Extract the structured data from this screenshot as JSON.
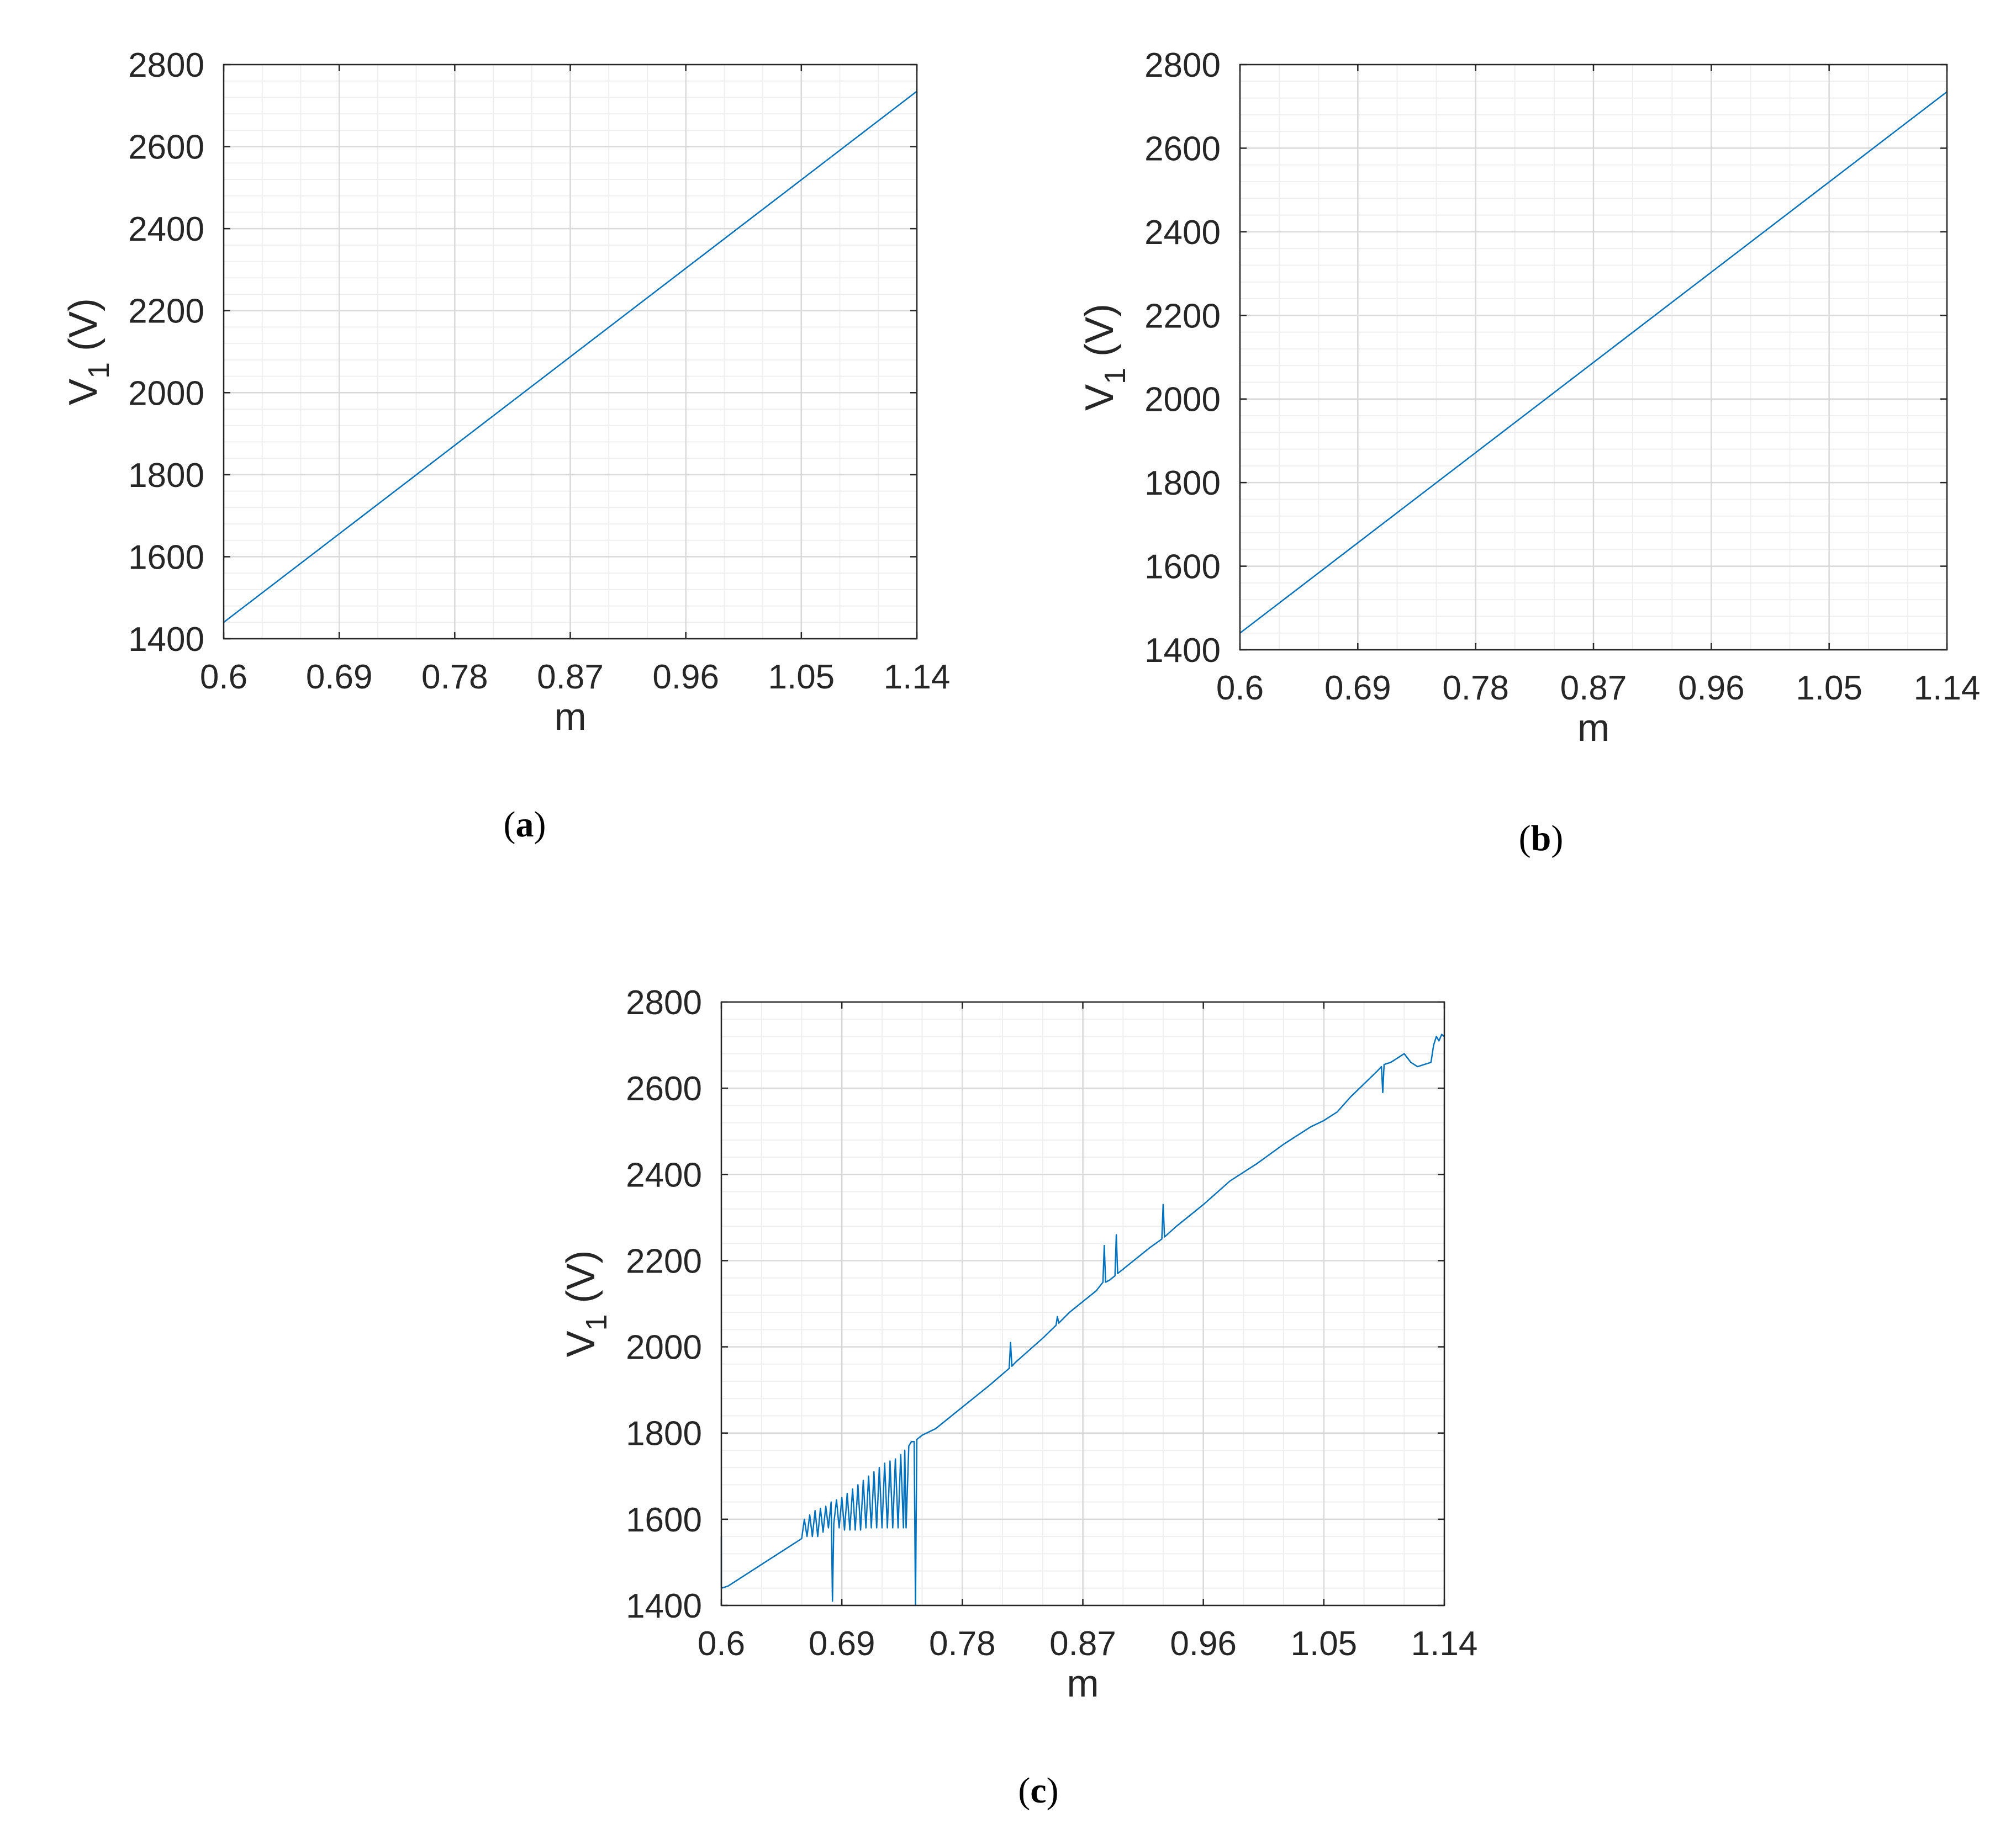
{
  "figure": {
    "colors": {
      "line": "#0072BD",
      "grid_major": "#d9d9d9",
      "grid_minor": "#efefef",
      "axis": "#262626"
    }
  },
  "chart_data": [
    {
      "type": "line",
      "panel_label": "a",
      "xlabel": "m",
      "ylabel_main": "V",
      "ylabel_sub": "1",
      "ylabel_unit": "(V)",
      "xlim": [
        0.6,
        1.14
      ],
      "ylim": [
        1400,
        2800
      ],
      "xticks": [
        "0.6",
        "0.69",
        "0.78",
        "0.87",
        "0.96",
        "1.05",
        "1.14"
      ],
      "yticks": [
        "1400",
        "1600",
        "1800",
        "2000",
        "2200",
        "2400",
        "2600",
        "2800"
      ],
      "grid": true,
      "series": [
        {
          "x": [
            0.6,
            1.14
          ],
          "y": [
            1440,
            2735
          ]
        }
      ]
    },
    {
      "type": "line",
      "panel_label": "b",
      "xlabel": "m",
      "ylabel_main": "V",
      "ylabel_sub": "1",
      "ylabel_unit": "(V)",
      "xlim": [
        0.6,
        1.14
      ],
      "ylim": [
        1400,
        2800
      ],
      "xticks": [
        "0.6",
        "0.69",
        "0.78",
        "0.87",
        "0.96",
        "1.05",
        "1.14"
      ],
      "yticks": [
        "1400",
        "1600",
        "1800",
        "2000",
        "2200",
        "2400",
        "2600",
        "2800"
      ],
      "grid": true,
      "series": [
        {
          "x": [
            0.6,
            1.14
          ],
          "y": [
            1440,
            2735
          ]
        }
      ]
    },
    {
      "type": "line",
      "panel_label": "c",
      "xlabel": "m",
      "ylabel_main": "V",
      "ylabel_sub": "1",
      "ylabel_unit": "(V)",
      "xlim": [
        0.6,
        1.14
      ],
      "ylim": [
        1400,
        2800
      ],
      "xticks": [
        "0.6",
        "0.69",
        "0.78",
        "0.87",
        "0.96",
        "1.05",
        "1.14"
      ],
      "yticks": [
        "1400",
        "1600",
        "1800",
        "2000",
        "2200",
        "2400",
        "2600",
        "2800"
      ],
      "grid": true,
      "series": [
        {
          "x": [
            0.6,
            0.6,
            0.605,
            0.62,
            0.64,
            0.66,
            0.662,
            0.664,
            0.666,
            0.668,
            0.67,
            0.672,
            0.674,
            0.676,
            0.678,
            0.68,
            0.682,
            0.683,
            0.684,
            0.686,
            0.688,
            0.69,
            0.692,
            0.694,
            0.696,
            0.698,
            0.7,
            0.702,
            0.704,
            0.706,
            0.708,
            0.71,
            0.712,
            0.714,
            0.716,
            0.718,
            0.72,
            0.722,
            0.724,
            0.726,
            0.728,
            0.73,
            0.732,
            0.734,
            0.736,
            0.737,
            0.738,
            0.74,
            0.742,
            0.744,
            0.745,
            0.746,
            0.748,
            0.75,
            0.76,
            0.78,
            0.8,
            0.815,
            0.816,
            0.817,
            0.82,
            0.84,
            0.85,
            0.851,
            0.852,
            0.86,
            0.88,
            0.885,
            0.886,
            0.887,
            0.89,
            0.894,
            0.895,
            0.896,
            0.9,
            0.92,
            0.929,
            0.93,
            0.931,
            0.94,
            0.96,
            0.98,
            1.0,
            1.02,
            1.04,
            1.05,
            1.06,
            1.07,
            1.08,
            1.09,
            1.093,
            1.094,
            1.095,
            1.1,
            1.11,
            1.115,
            1.12,
            1.125,
            1.13,
            1.132,
            1.134,
            1.136,
            1.138,
            1.14
          ],
          "y": [
            1560,
            1440,
            1445,
            1475,
            1515,
            1555,
            1600,
            1560,
            1610,
            1560,
            1620,
            1560,
            1625,
            1570,
            1630,
            1580,
            1640,
            1410,
            1590,
            1645,
            1580,
            1650,
            1575,
            1660,
            1575,
            1670,
            1575,
            1680,
            1575,
            1690,
            1580,
            1700,
            1580,
            1710,
            1580,
            1720,
            1580,
            1730,
            1580,
            1735,
            1580,
            1740,
            1580,
            1750,
            1580,
            1760,
            1580,
            1770,
            1780,
            1780,
            1400,
            1785,
            1790,
            1795,
            1810,
            1860,
            1910,
            1950,
            2010,
            1955,
            1965,
            2020,
            2050,
            2070,
            2055,
            2080,
            2130,
            2150,
            2235,
            2150,
            2155,
            2165,
            2260,
            2170,
            2180,
            2230,
            2250,
            2330,
            2255,
            2280,
            2330,
            2385,
            2425,
            2470,
            2510,
            2525,
            2545,
            2580,
            2610,
            2640,
            2650,
            2590,
            2655,
            2660,
            2680,
            2660,
            2650,
            2655,
            2660,
            2700,
            2720,
            2710,
            2725,
            2720
          ]
        }
      ]
    }
  ]
}
